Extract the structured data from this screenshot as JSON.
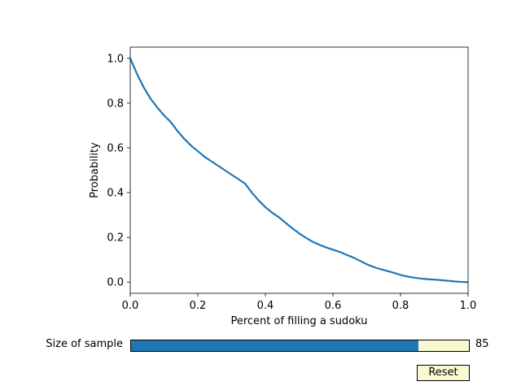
{
  "chart_data": {
    "type": "line",
    "xlabel": "Percent of filling a sudoku",
    "ylabel": "Probability",
    "xlim": [
      0,
      1
    ],
    "ylim": [
      -0.05,
      1.05
    ],
    "xticks": [
      "0.0",
      "0.2",
      "0.4",
      "0.6",
      "0.8",
      "1.0"
    ],
    "yticks": [
      "0.0",
      "0.2",
      "0.4",
      "0.6",
      "0.8",
      "1.0"
    ],
    "grid": false,
    "series": [
      {
        "color": "#1f77b4",
        "x": [
          0.0,
          0.02,
          0.04,
          0.06,
          0.08,
          0.1,
          0.12,
          0.14,
          0.16,
          0.18,
          0.2,
          0.22,
          0.24,
          0.26,
          0.28,
          0.3,
          0.32,
          0.34,
          0.36,
          0.38,
          0.4,
          0.42,
          0.44,
          0.46,
          0.48,
          0.5,
          0.52,
          0.54,
          0.56,
          0.58,
          0.6,
          0.62,
          0.64,
          0.66,
          0.68,
          0.7,
          0.72,
          0.74,
          0.76,
          0.78,
          0.8,
          0.82,
          0.84,
          0.86,
          0.88,
          0.9,
          0.92,
          0.94,
          0.96,
          0.98,
          1.0
        ],
        "y": [
          1.0,
          0.93,
          0.87,
          0.82,
          0.78,
          0.745,
          0.715,
          0.675,
          0.64,
          0.61,
          0.585,
          0.56,
          0.54,
          0.52,
          0.5,
          0.48,
          0.46,
          0.44,
          0.4,
          0.365,
          0.335,
          0.31,
          0.29,
          0.265,
          0.24,
          0.218,
          0.198,
          0.18,
          0.167,
          0.155,
          0.145,
          0.135,
          0.122,
          0.11,
          0.095,
          0.08,
          0.068,
          0.058,
          0.05,
          0.042,
          0.032,
          0.025,
          0.02,
          0.016,
          0.013,
          0.011,
          0.009,
          0.006,
          0.003,
          0.001,
          0.0
        ]
      }
    ]
  },
  "slider": {
    "label": "Size of sample",
    "value": 85,
    "value_text": "85",
    "min": 0,
    "max": 100,
    "fill_color": "#1f77b4",
    "track_color": "#fafad2"
  },
  "reset_button": {
    "label": "Reset",
    "color": "#fafad2"
  }
}
